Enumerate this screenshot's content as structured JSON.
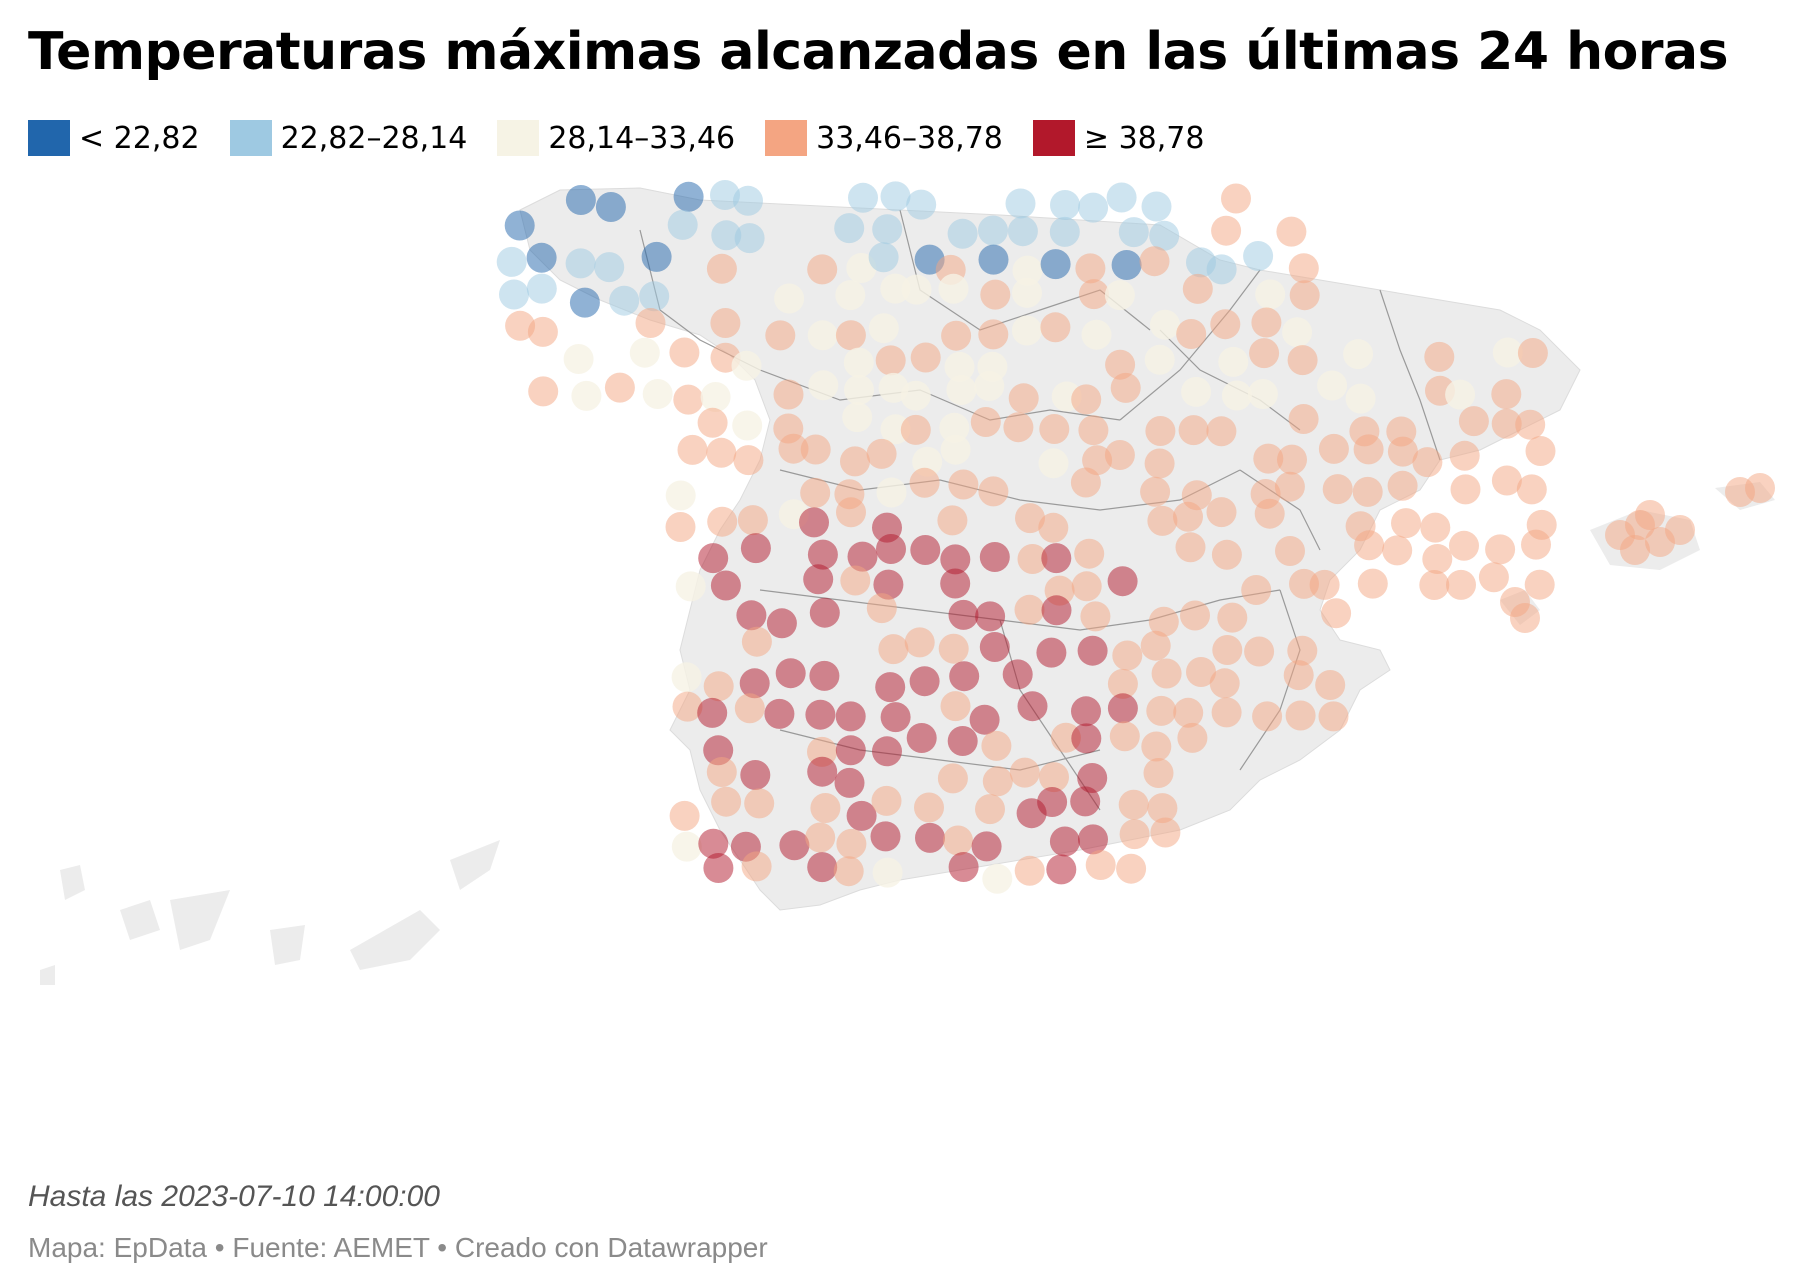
{
  "title": "Temperaturas máximas alcanzadas en las últimas 24 horas",
  "legend": {
    "items": [
      {
        "label": "< 22,82",
        "color": "#2166ac"
      },
      {
        "label": "22,82–28,14",
        "color": "#9ec9e2"
      },
      {
        "label": "28,14–33,46",
        "color": "#f6f3e5"
      },
      {
        "label": "33,46–38,78",
        "color": "#f4a582"
      },
      {
        "label": "≥ 38,78",
        "color": "#b2182b"
      }
    ]
  },
  "map": {
    "region": "Spain",
    "marker_classes": [
      "blue-dark",
      "blue-light",
      "cream",
      "orange",
      "red"
    ]
  },
  "note": "Hasta las 2023-07-10 14:00:00",
  "credits": "Mapa: EpData • Fuente: AEMET • Creado con Datawrapper"
}
